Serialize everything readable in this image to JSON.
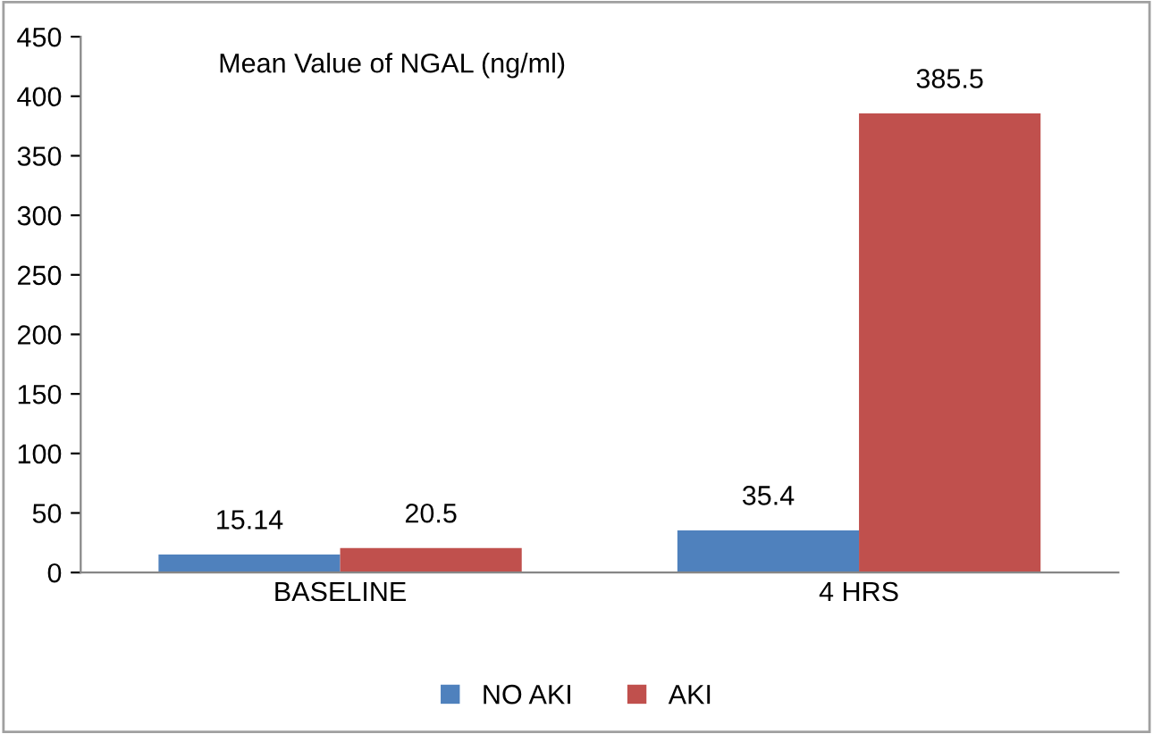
{
  "chart_data": {
    "type": "bar",
    "title": "Mean Value of NGAL (ng/ml)",
    "categories": [
      "BASELINE",
      "4 HRS"
    ],
    "series": [
      {
        "name": "NO AKI",
        "color": "#4f81bd",
        "values": [
          15.14,
          35.4
        ]
      },
      {
        "name": "AKI",
        "color": "#c0504d",
        "values": [
          20.5,
          385.5
        ]
      }
    ],
    "ylim": [
      0,
      450
    ],
    "yticks": [
      0,
      50,
      100,
      150,
      200,
      250,
      300,
      350,
      400,
      450
    ],
    "data_labels": true,
    "legend": "bottom",
    "grid": false
  }
}
